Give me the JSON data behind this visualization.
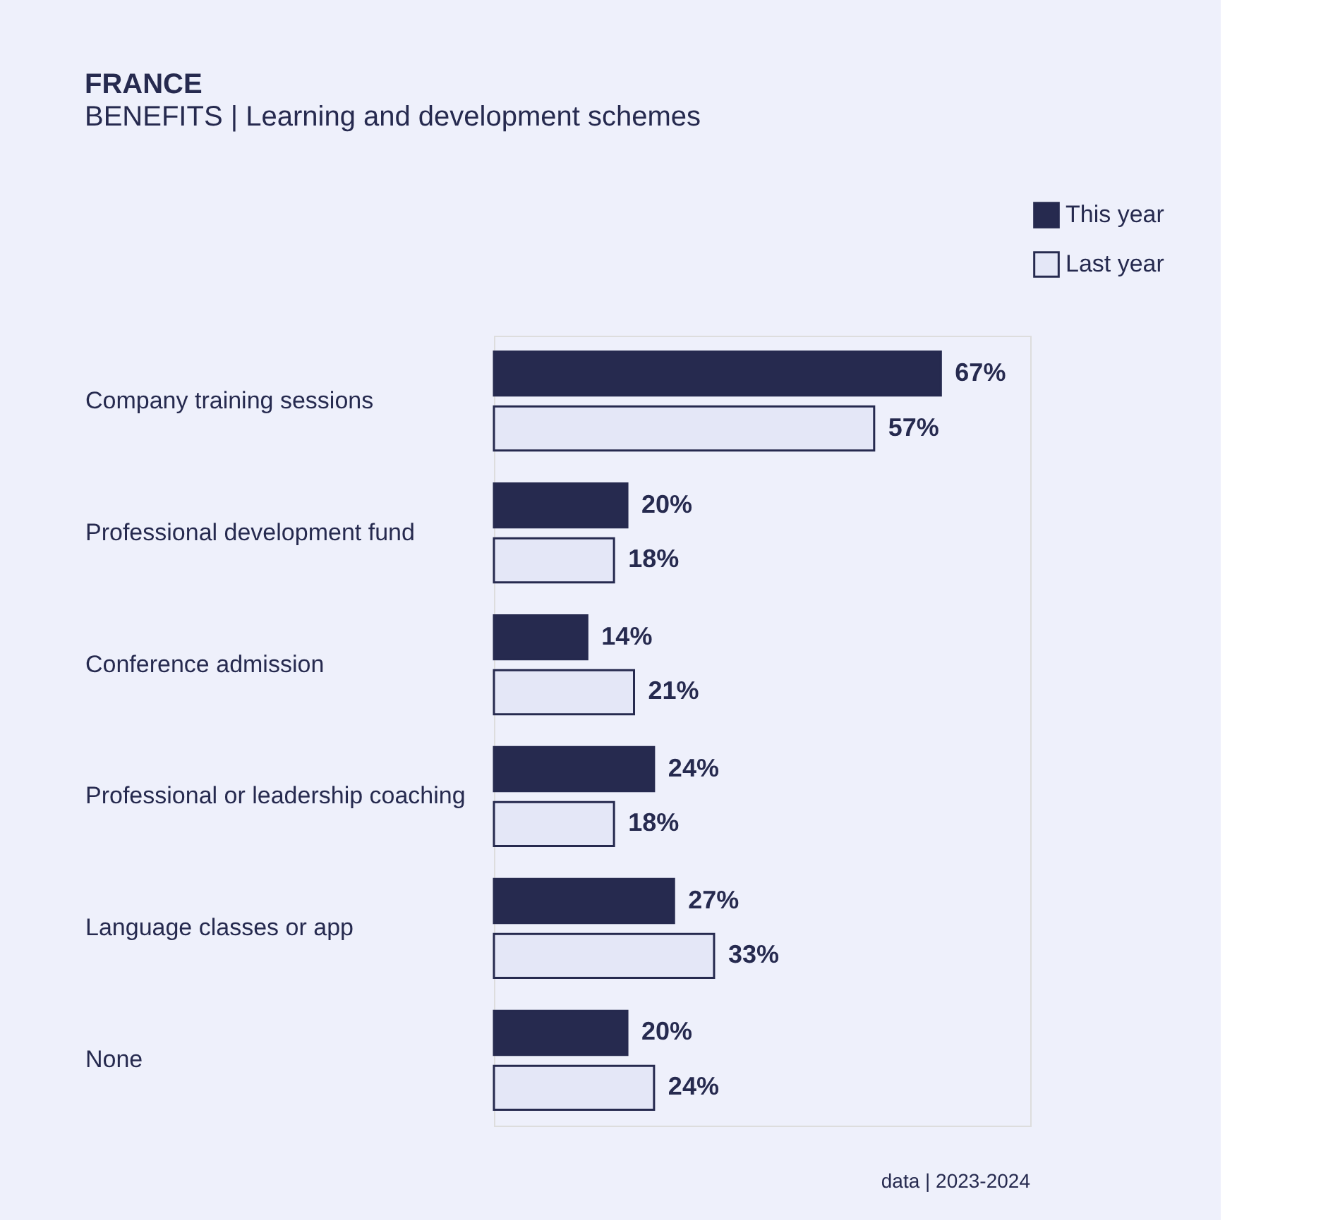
{
  "chart_data": {
    "type": "bar",
    "orientation": "horizontal",
    "title": "FRANCE",
    "subtitle": "BENEFITS | Learning and development schemes",
    "categories": [
      "Company training sessions",
      "Professional development fund",
      "Conference admission",
      "Professional or leadership coaching",
      "Language classes or app",
      "None"
    ],
    "series": [
      {
        "name": "This year",
        "color": "#262a4f",
        "values": [
          67,
          20,
          14,
          24,
          27,
          20
        ],
        "value_labels": [
          "67%",
          "20%",
          "14%",
          "24%",
          "27%",
          "20%"
        ]
      },
      {
        "name": "Last year",
        "color": "#e4e7f7",
        "values": [
          57,
          18,
          21,
          18,
          33,
          24
        ],
        "value_labels": [
          "57%",
          "18%",
          "21%",
          "18%",
          "33%",
          "24%"
        ]
      }
    ],
    "legend": "top right",
    "annotations": [
      "data | 2023-2024"
    ]
  }
}
